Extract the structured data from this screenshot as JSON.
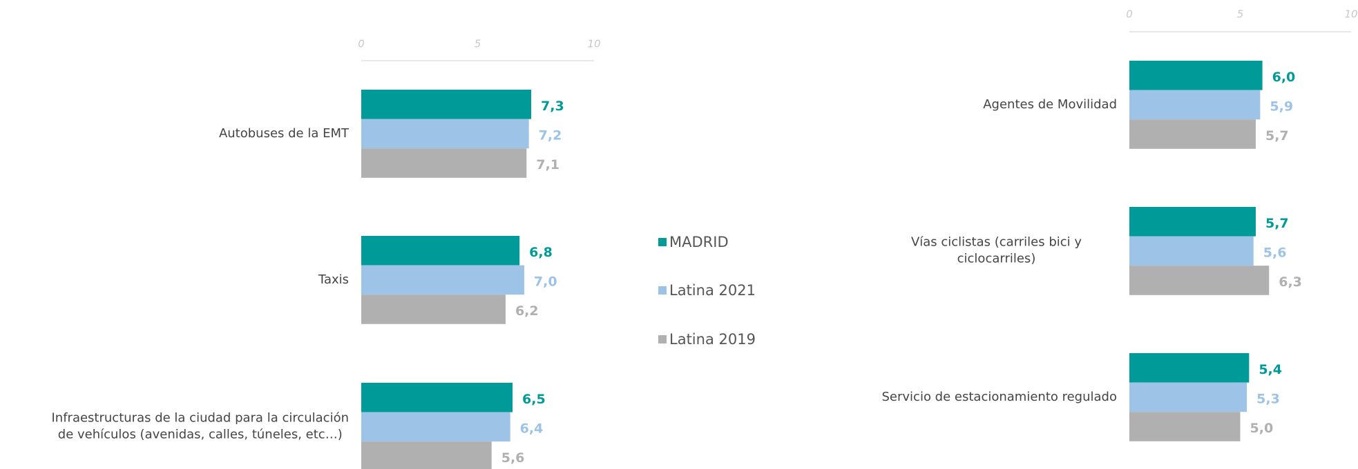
{
  "chart_data": [
    {
      "type": "barh",
      "categories": [
        "Autobuses de la EMT",
        "Taxis",
        "Infraestructuras de la ciudad para la circulación\nde vehículos (avenidas, calles, túneles, etc…)"
      ],
      "series": [
        {
          "name": "MADRID",
          "color": "#009b98",
          "values": [
            7.3,
            6.8,
            6.5
          ],
          "value_labels": [
            "7,3",
            "6,8",
            "6,5"
          ]
        },
        {
          "name": "Latina 2021",
          "color": "#9dc3e6",
          "values": [
            7.2,
            7.0,
            6.4
          ],
          "value_labels": [
            "7,2",
            "7,0",
            "6,4"
          ]
        },
        {
          "name": "Latina 2019",
          "color": "#b0b0b0",
          "values": [
            7.1,
            6.2,
            5.6
          ],
          "value_labels": [
            "7,1",
            "6,2",
            "5,6"
          ]
        }
      ],
      "xlim": [
        0,
        10
      ],
      "xticks": [
        0,
        5,
        10
      ]
    },
    {
      "type": "barh",
      "categories": [
        "Agentes de Movilidad",
        "Vías ciclistas (carriles bici y ciclocarriles)",
        "Servicio de estacionamiento regulado"
      ],
      "series": [
        {
          "color": "#009b98",
          "values": [
            6.0,
            5.7,
            5.4
          ],
          "value_labels": [
            "6,0",
            "5,7",
            "5,4"
          ]
        },
        {
          "color": "#9dc3e6",
          "values": [
            5.9,
            5.6,
            5.3
          ],
          "value_labels": [
            "5,9",
            "5,6",
            "5,3"
          ]
        },
        {
          "color": "#b0b0b0",
          "values": [
            5.7,
            6.3,
            5.0
          ],
          "value_labels": [
            "5,7",
            "6,3",
            "5,0"
          ]
        }
      ],
      "xlim": [
        0,
        10
      ],
      "xticks": [
        0,
        5,
        10
      ]
    }
  ]
}
